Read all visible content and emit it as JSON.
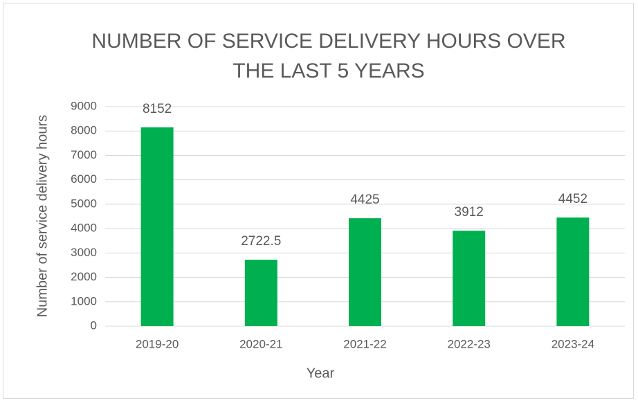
{
  "chart_data": {
    "type": "bar",
    "title": "NUMBER OF SERVICE DELIVERY HOURS OVER THE LAST 5 YEARS",
    "x_label": "Year",
    "y_label": "Number of service delivery hours",
    "categories": [
      "2019-20",
      "2020-21",
      "2021-22",
      "2022-23",
      "2023-24"
    ],
    "values": [
      8152,
      2722.5,
      4425,
      3912,
      4452
    ],
    "color": "#00b050",
    "ylim": [
      0,
      9000
    ],
    "yticks": [
      0,
      1000,
      2000,
      3000,
      4000,
      5000,
      6000,
      7000,
      8000,
      9000
    ],
    "grid": true
  }
}
